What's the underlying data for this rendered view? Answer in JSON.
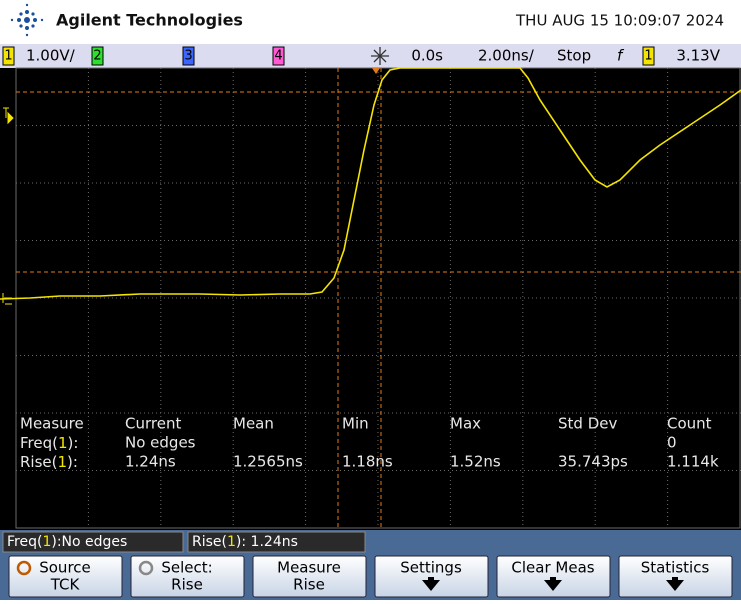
{
  "header": {
    "brand": "Agilent Technologies",
    "datetime": "THU AUG 15 10:09:07 2024"
  },
  "status": {
    "ch1": "1",
    "scale": "1.00V/",
    "ch2": "2",
    "ch3": "3",
    "ch4": "4",
    "delay": "0.0s",
    "timebase": "2.00ns/",
    "run": "Stop",
    "slope": "f",
    "trig_ch": "1",
    "trig_level": "3.13V"
  },
  "measurements": {
    "headers": [
      "Measure",
      "Current",
      "Mean",
      "Min",
      "Max",
      "Std Dev",
      "Count"
    ],
    "rows": [
      {
        "name": {
          "pre": "Freq(",
          "ch": "1",
          "post": "):"
        },
        "cells": [
          "No edges",
          "",
          "",
          "",
          "",
          "0"
        ]
      },
      {
        "name": {
          "pre": "Rise(",
          "ch": "1",
          "post": "):"
        },
        "cells": [
          "1.24ns",
          "1.2565ns",
          "1.18ns",
          "1.52ns",
          "35.743ps",
          "1.114k"
        ]
      }
    ]
  },
  "readouts": [
    {
      "pre": "Freq(",
      "ch": "1",
      "post": "):No edges"
    },
    {
      "pre": "Rise(",
      "ch": "1",
      "post": "): 1.24ns"
    }
  ],
  "softkeys": [
    {
      "line1": "Source",
      "line2": "TCK"
    },
    {
      "line1": "Select:",
      "line2": "Rise"
    },
    {
      "line1": "Measure",
      "line2": "Rise"
    },
    {
      "line1": "Settings",
      "line2": ""
    },
    {
      "line1": "Clear Meas",
      "line2": ""
    },
    {
      "line1": "Statistics",
      "line2": ""
    }
  ]
}
